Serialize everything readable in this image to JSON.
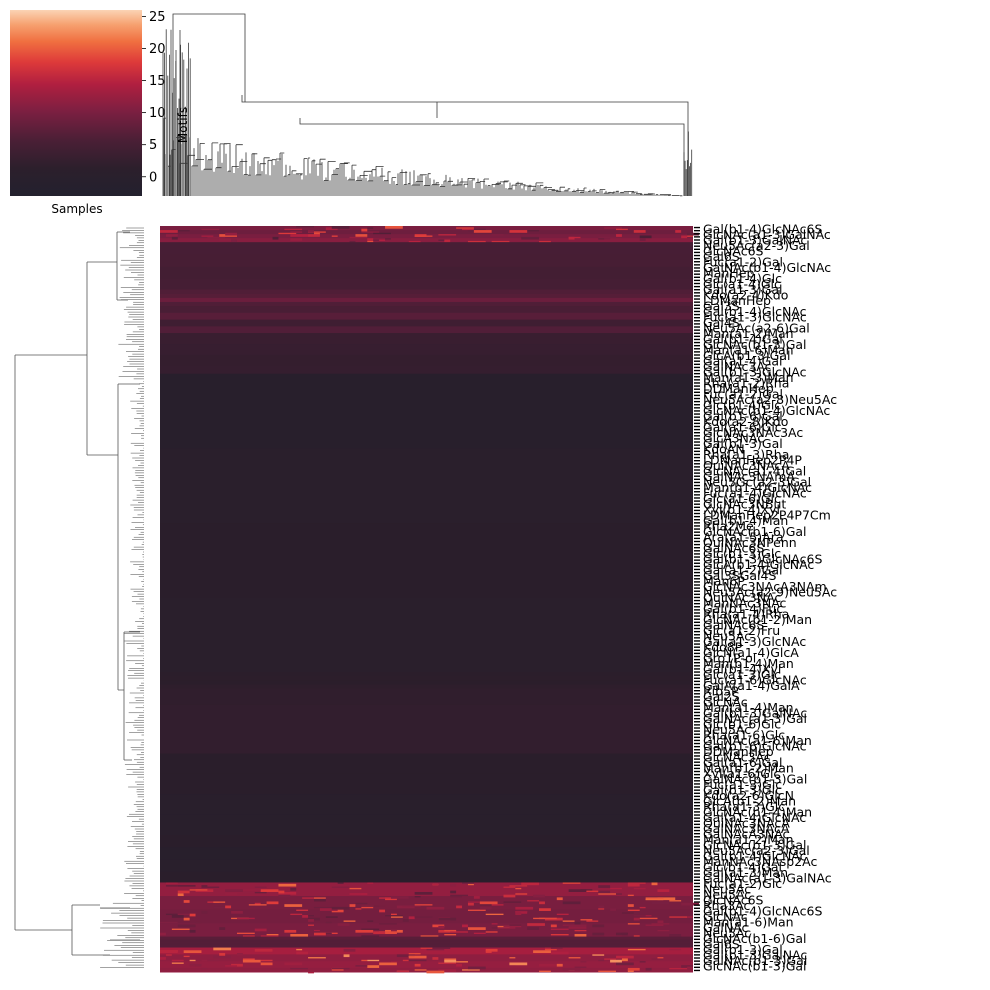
{
  "chart_data": {
    "type": "heatmap",
    "title": "",
    "xlabel": "",
    "ylabel": "",
    "colorbar": {
      "label": "Samples",
      "ticks": [
        0,
        5,
        10,
        15,
        20,
        25
      ],
      "tick_labels": [
        "0",
        "5",
        "10",
        "15",
        "20",
        "25"
      ],
      "range": [
        -3,
        26
      ],
      "colormap": "rocket"
    },
    "col_dendrogram": {
      "axis_label": "Motifs"
    },
    "row_dendrogram": {
      "leaf_count": "~500"
    },
    "row_blocks": [
      {
        "rows": 12,
        "value": 9.5
      },
      {
        "rows": 35,
        "value": 6.0
      },
      {
        "rows": 12,
        "value": 7.5
      },
      {
        "rows": 20,
        "value": 5.5
      },
      {
        "rows": 30,
        "value": 3.0
      },
      {
        "rows": 220,
        "value": 0.0
      },
      {
        "rows": 12,
        "value": 1.5
      },
      {
        "rows": 48,
        "value": 2.5
      },
      {
        "rows": 60,
        "value": 0.5
      },
      {
        "rows": 35,
        "value": 0.0
      },
      {
        "rows": 40,
        "value": 11.0
      },
      {
        "rows": 8,
        "value": 6.0
      },
      {
        "rows": 18,
        "value": 13.0
      }
    ],
    "row_labels_visible": [
      "Gal(b1-4)GlcNAc6S",
      "GlcNAc(a1-3)GalNAc",
      "Gal(b1-3)GalNAc",
      "Neu5Ac(a2-3)Gal",
      "GlcNAc6S",
      "Gal6S",
      "Fuc(a1-2)Gal",
      "GalNAc(b1-4)GlcNAc",
      "ManHep",
      "Gal(b1-4)Glc",
      "Glc(a1-4)Glc",
      "Gal(a1-3)Gal",
      "Kdo(a2-4)Kdo",
      "LDManHep",
      "Gal3S",
      "Gal(b1-4)GlcNAc",
      "Fuc(a1-3)GlcNAc",
      "Gal4S",
      "Neu5Ac(a2-6)Gal",
      "Man(a1-2)Man",
      "Gal(b1-4)Gal",
      "GlcNAc(b1-3)Gal",
      "Man(a1-6)Man",
      "GlcA(b1-3)Gal",
      "Gal(a1-4)Gal",
      "GalNAc3Ac",
      "Gal(b1-3)GlcNAc",
      "Man(a1-3)Man",
      "Rha(a1-2)Rha",
      "DDManHep",
      "Fuc(a1-2)Gal",
      "Neu5Ac(a2-8)Neu5Ac",
      "Glc(b1-4)Glc",
      "GlcNAc(b1-4)GlcNAc",
      "Gal(b1-6)Gal",
      "Kdo(a2-8)Kdo",
      "Gal(a1-6)Glc",
      "GlcNAc3NAc3Ac",
      "GlcA3NAc",
      "Gal(b1-3)Gal",
      "KdoAN",
      "Rha(a1-3)Rha",
      "LDManHep2P4P",
      "QuiNAc3NAcA",
      "GlcNAc(a1-4)Gal",
      "GalNAc3NAmA",
      "Neu5Gc(a2-3)Gal",
      "Man(b1-4)GlcNAc",
      "Fuc(a1-4)GlcNAc",
      "Glc(a1-6)Glc",
      "GlcNAc3NBut",
      "Xyl(b1-4)Xyl",
      "LDManHep2P4P7Cm",
      "Gal(b1-4)Man",
      "Rha2Me",
      "GlcNAc(b1-6)Gal",
      "Ara(a1-5)Ara",
      "QuiNAc3NPenn",
      "GalNAc6S",
      "Glc(b1-3)Glc",
      "Gal(b1-3)GlcNAc6S",
      "GlcA(b1-4)GlcNAc",
      "Gal(a1-2)Gal",
      "Gal3SGal4S",
      "Man6P",
      "GlcNAc3NAcA3NAm",
      "Neu5Ac(a2-9)Neu5Ac",
      "QuiNAc3NAc",
      "ManNAc3NAc",
      "Gal(b1-4)Fuc",
      "Rha(a1-4)Rha",
      "GlcNAc(b1-2)Man",
      "GalNAc6S",
      "Glc(a1-2)Fru",
      "Neu5Ac",
      "Gal(a1-3)GlcNAc",
      "Kdo8P",
      "GlcN(a1-4)GlcA",
      "Gro1P-ol",
      "Man(b1-4)Man",
      "Gal(b1-4)Xyl",
      "Glc(a1-3)Glc",
      "Fuc(a1-6)GlcNAc",
      "GalA(a1-4)GalA",
      "Rib5P",
      "Gal2S",
      "GlcNAc",
      "Man(a1-4)Man",
      "Gal(b1-3)GalNAc",
      "GalNAc(a1-3)Gal",
      "Glc(b1-6)Glc",
      "Neu5Ac",
      "Rha(a1-6)Glc",
      "GlcNAc(a1-6)Man",
      "Gal(b1-6)GlcNAc",
      "DDManHep",
      "GlcNAc3Ac",
      "Gal(a1-6)Gal",
      "Man(b1-2)Man",
      "Xyl(a1-6)Glc",
      "GalNAc(b1-3)Gal",
      "Fuc(a1-3)Glc",
      "Gal(b1-3)Glc",
      "Kdo(a2-6)GlcN",
      "GlcA(b1-2)Man",
      "Rha(a1-3)Glc",
      "GlcNAc(b1-4)Man",
      "Gal(a1-4)GlcNAc",
      "QuiNAc3NAcA",
      "GalNAc3NAcA",
      "GalNAcA3NAc",
      "Man(a1-2)Man",
      "GlcNAc(b1-3)Gal",
      "Neu5Ac(a2-3)Gal",
      "Gal(b1-4)GlcNAc",
      "ManNAc3NAsp2Ac",
      "Glc(b1-4)Gal",
      "Gal(a1-3)Man",
      "GalNAc(a1-3)GalNAc",
      "Fuc(a1-2)Glc",
      "Neu5Ac",
      "Neu5Ac",
      "GlcNAc6S",
      "Rha3Ac",
      "Gal(b1-4)GlcNAc6S",
      "GlcNAc",
      "Man(a1-6)Man",
      "GalNAc",
      "Neu5Ac",
      "GlcNAc(b1-6)Gal",
      "Gal6S",
      "Gal(b1-3)Gal",
      "Gal(b1-3)GalNAc",
      "GalNAc(b1-3)Gal",
      "GlcNAc(b1-3)Gal"
    ]
  }
}
